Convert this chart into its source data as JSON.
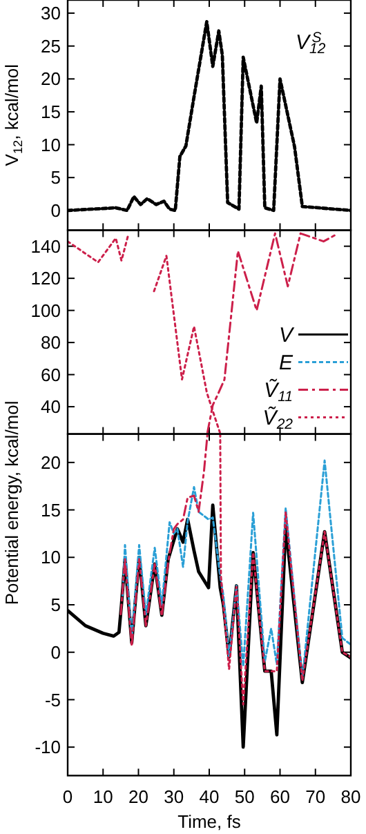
{
  "chart_data": [
    {
      "type": "line",
      "ylabel": "V$_{12}$, kcal/mol",
      "xlim": [
        0,
        80
      ],
      "xticks": [
        0,
        10,
        20,
        30,
        40,
        50,
        60,
        70,
        80
      ],
      "ylim": [
        -3,
        32
      ],
      "yticks": [
        0,
        5,
        10,
        15,
        20,
        25,
        30
      ],
      "tick_labels": "y",
      "legend": "top right",
      "series": [
        {
          "name": "V$_{12}$$^{S}$",
          "color": "#000000",
          "line_style": "dashed",
          "x": [
            0,
            13.6,
            16.8,
            18.7,
            20.6,
            22.5,
            25,
            27.2,
            28.8,
            30.4,
            31.7,
            33.4,
            35.7,
            39.3,
            41,
            42.7,
            43.7,
            45.2,
            48.4,
            49.6,
            53.4,
            54.7,
            55.7,
            58.2,
            60,
            64.1,
            66.3,
            80
          ],
          "values": [
            0,
            0.4,
            0,
            2.1,
            0.9,
            1.8,
            0.9,
            1.4,
            0.2,
            0,
            8.2,
            9.8,
            17.3,
            28.7,
            21.9,
            27.3,
            23.6,
            1.2,
            0.2,
            23.3,
            13.3,
            18.9,
            0.4,
            0,
            20,
            9.7,
            0.6,
            0
          ]
        }
      ]
    },
    {
      "type": "line",
      "xlim": [
        0,
        80
      ],
      "xticks": [
        0,
        10,
        20,
        30,
        40,
        50,
        60,
        70,
        80
      ],
      "ylim": [
        23,
        150
      ],
      "yticks": [
        40,
        60,
        80,
        100,
        120,
        140
      ],
      "tick_labels": "y",
      "legend": "bottom right",
      "series": [
        {
          "name": "V",
          "color": "#000000",
          "line_style": "solid"
        },
        {
          "name": "E",
          "color": "#2a9fd6",
          "line_style": "dashed"
        },
        {
          "name": "Ṽ$_{11}$",
          "color": "#cc1f4a",
          "line_style": "dashdot",
          "x": [
            39.5,
            41,
            42.5,
            44.3,
            48.1,
            53.4,
            58.6,
            62.2,
            65.8,
            72.3,
            75.6
          ],
          "values": [
            24,
            41,
            48,
            57,
            137,
            100,
            148,
            115,
            148,
            143,
            147
          ]
        },
        {
          "name": "Ṽ$_{22}$",
          "color": "#cc1f4a",
          "line_style": "dotted",
          "x": [
            0,
            8.6,
            13.6,
            15.2,
            17.1,
            17.6,
            19.5,
            21.5,
            24.4,
            27.9,
            32.3,
            35.7,
            39.3,
            40.6,
            43
          ],
          "values": [
            143,
            130,
            145,
            131,
            147,
            null,
            null,
            null,
            112,
            134,
            57,
            90,
            49,
            40,
            24
          ]
        }
      ]
    },
    {
      "type": "line",
      "xlabel": "Time, fs",
      "ylabel": "Potential energy, kcal/mol",
      "xlim": [
        0,
        80
      ],
      "xticks": [
        0,
        10,
        20,
        30,
        40,
        50,
        60,
        70,
        80
      ],
      "ylim": [
        -13,
        23
      ],
      "yticks": [
        -10,
        -5,
        0,
        5,
        10,
        15,
        20
      ],
      "series": [
        {
          "color": "#000000",
          "line_style": "solid",
          "x": [
            0,
            5,
            10,
            13,
            14.5,
            15.2,
            16.2,
            18.1,
            20.2,
            22.1,
            24.6,
            26.6,
            28.4,
            30,
            31,
            32.6,
            33.9,
            35.7,
            37,
            39.8,
            41,
            43.1,
            44,
            45.6,
            47.7,
            49.6,
            52.4,
            55.7,
            57.5,
            59.1,
            61.6,
            66.3,
            72.6,
            77.6,
            80
          ],
          "values": [
            4.4,
            2.8,
            2,
            1.7,
            2.1,
            5,
            9.8,
            1,
            10,
            2.8,
            9.3,
            3.9,
            9.8,
            11.8,
            13,
            11.6,
            14,
            10.7,
            8.5,
            6.8,
            15.5,
            6.8,
            5,
            -0.5,
            7,
            -10,
            10.5,
            -2,
            -2,
            -8.7,
            13.3,
            -3.2,
            12.7,
            0,
            -0.6
          ]
        },
        {
          "color": "#2a9fd6",
          "line_style": "dashed",
          "x": [
            15.5,
            16.2,
            18.1,
            20.2,
            22.1,
            24.6,
            26.6,
            28.8,
            30,
            31,
            32.6,
            33.9,
            35.7,
            37,
            39.8,
            41,
            43.1,
            44,
            45.6,
            47.7,
            49.6,
            52.4,
            55.7,
            57.5,
            59.1,
            61.6,
            66.3,
            72.6,
            77.6,
            80
          ],
          "values": [
            6,
            11.3,
            1.5,
            11.3,
            4,
            11,
            5,
            13.7,
            12.5,
            13,
            9,
            13.8,
            17.4,
            14.8,
            14,
            14.2,
            8,
            6,
            -0.5,
            7,
            -1.5,
            14.7,
            -1,
            2.5,
            -1.3,
            15.2,
            -2.8,
            20.2,
            1.5,
            0.8
          ]
        },
        {
          "color": "#cc1f4a",
          "line_style": "dashdot",
          "x": [
            15,
            16.2,
            18.1,
            20.2,
            22.1,
            24.6,
            26.6,
            28.4,
            30,
            31,
            32.6,
            33.9,
            35.7,
            37,
            38.5,
            39.5
          ],
          "values": [
            4,
            9.8,
            0.6,
            9.8,
            2.8,
            9.3,
            3.8,
            9.5,
            13,
            13.5,
            14,
            16.3,
            16.5,
            14.8,
            19,
            23
          ]
        },
        {
          "color": "#cc1f4a",
          "line_style": "dotted",
          "x": [
            43.1,
            43.3,
            44,
            45.6,
            47.7,
            49.6,
            52.4,
            55.7,
            57.5,
            59.1,
            61.6,
            66.3,
            72.6,
            77.6,
            80
          ],
          "values": [
            23,
            8,
            5,
            -1.8,
            6.9,
            -5.5,
            10.5,
            -2,
            -2,
            -2,
            14.8,
            -3,
            12.7,
            0,
            -0.5
          ]
        }
      ]
    }
  ]
}
